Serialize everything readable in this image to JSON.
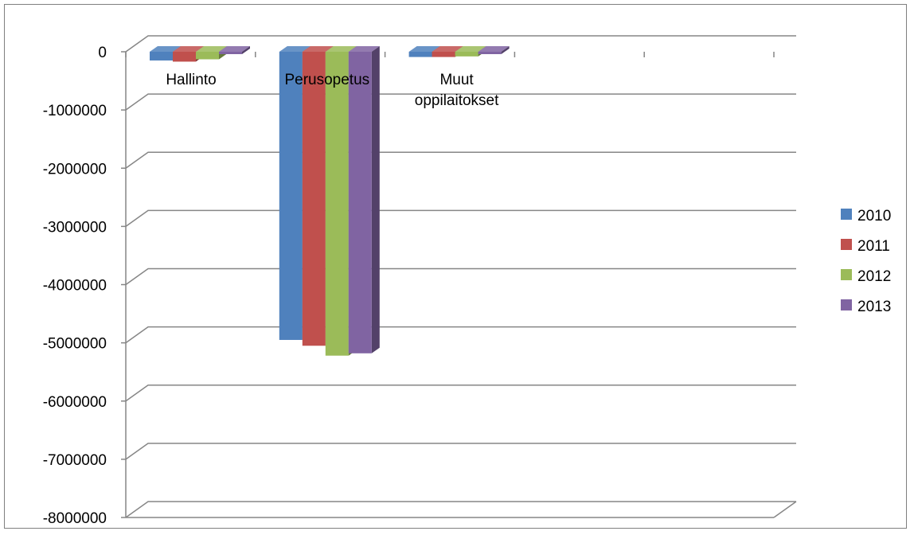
{
  "chart_data": {
    "type": "bar",
    "style": "3d-clustered-column",
    "categories": [
      "Hallinto",
      "Perusopetus",
      "Muut oppilaitokset"
    ],
    "category_label_lines": [
      [
        "Hallinto"
      ],
      [
        "Perusopetus"
      ],
      [
        "Muut",
        "oppilaitokset"
      ]
    ],
    "series": [
      {
        "name": "2010",
        "color": "#4f81bd",
        "values": [
          -150000,
          -4950000,
          -90000
        ]
      },
      {
        "name": "2011",
        "color": "#c0504d",
        "values": [
          -170000,
          -5050000,
          -90000
        ]
      },
      {
        "name": "2012",
        "color": "#9bbb59",
        "values": [
          -130000,
          -5220000,
          -80000
        ]
      },
      {
        "name": "2013",
        "color": "#8064a2",
        "values": [
          -20000,
          -5180000,
          0
        ]
      }
    ],
    "ylim": [
      -8000000,
      0
    ],
    "yticks": [
      "0",
      "-1000000",
      "-2000000",
      "-3000000",
      "-4000000",
      "-5000000",
      "-6000000",
      "-7000000",
      "-8000000"
    ],
    "grid": true,
    "legend_position": "right",
    "title": "",
    "xlabel": "",
    "ylabel": ""
  }
}
